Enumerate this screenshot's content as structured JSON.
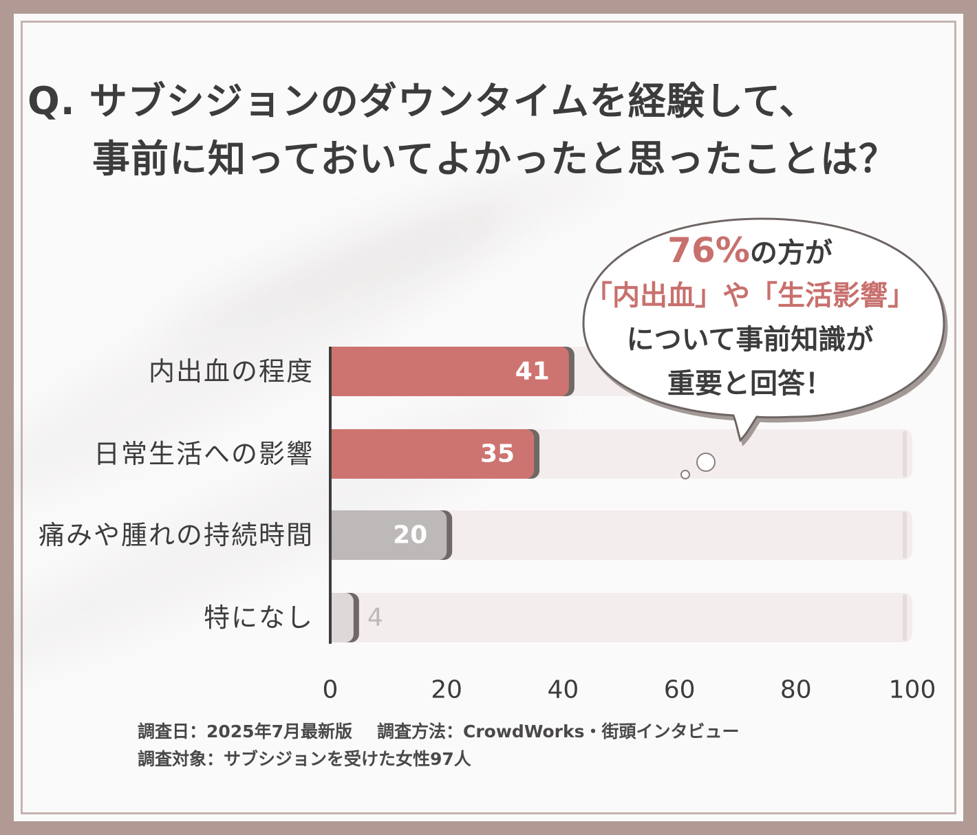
{
  "title": {
    "line1": "Q. サブシジョンのダウンタイムを経験して、",
    "line2": "事前に知っておいてよかったと思ったことは？"
  },
  "chart_data": {
    "type": "bar",
    "orientation": "horizontal",
    "categories": [
      "内出血の程度",
      "日常生活への影響",
      "痛みや腫れの持続時間",
      "特になし"
    ],
    "values": [
      41,
      35,
      20,
      4
    ],
    "xlim": [
      0,
      100
    ],
    "xticks": [
      "0",
      "20",
      "40",
      "60",
      "80",
      "100"
    ],
    "colors": {
      "highlight": "#cd7470",
      "normal": "#bdb9b8",
      "low": "#dcd9d8",
      "track": "#f3eded",
      "axis": "#3d3c3c"
    }
  },
  "callout": {
    "pct": "76%",
    "line1_rest": "の方が",
    "line2": "「内出血」や「生活影響」",
    "line3": "について事前知識が",
    "line4": "重要と回答！"
  },
  "footer": {
    "date": "調査日：2025年7月最新版",
    "method": "調査方法：CrowdWorks・街頭インタビュー",
    "target": "調査対象：サブシジョンを受けた女性97人"
  }
}
